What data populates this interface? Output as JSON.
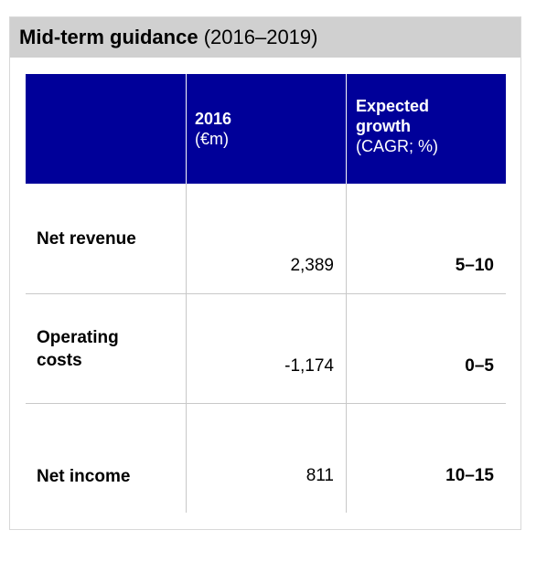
{
  "title": {
    "main": "Mid-term guidance",
    "sub": "(2016–2019)"
  },
  "table": {
    "headers": [
      {
        "strong": "",
        "light": ""
      },
      {
        "strong": "2016",
        "light": "(€m)"
      },
      {
        "strong": "Expected growth",
        "light": "(CAGR; %)"
      }
    ],
    "rows": [
      {
        "label": "Net revenue",
        "value_2016": "2,389",
        "growth": "5–10"
      },
      {
        "label": "Operating costs",
        "value_2016": "-1,174",
        "growth": "0–5"
      },
      {
        "label": "Net income",
        "value_2016": "811",
        "growth": "10–15"
      }
    ]
  },
  "colors": {
    "header_bg": "#000099",
    "title_bg": "#d0d0d0",
    "grid": "#c8c8c8"
  }
}
